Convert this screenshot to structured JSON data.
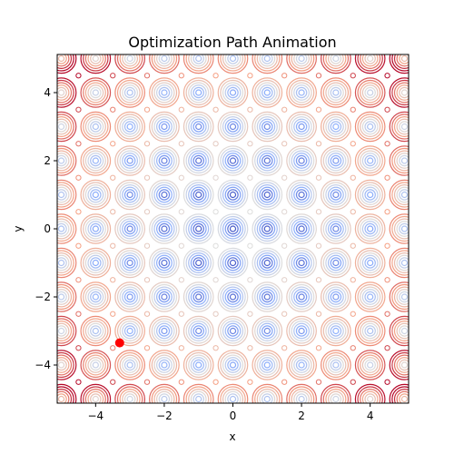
{
  "chart_data": {
    "type": "contour",
    "title": "Optimization Path Animation",
    "xlabel": "x",
    "ylabel": "y",
    "xlim": [
      -5.12,
      5.12
    ],
    "ylim": [
      -5.12,
      5.12
    ],
    "xticks": [
      -4,
      -2,
      0,
      2,
      4
    ],
    "yticks": [
      -4,
      -2,
      0,
      2,
      4
    ],
    "xtick_labels": [
      "−4",
      "−2",
      "0",
      "2",
      "4"
    ],
    "ytick_labels": [
      "−4",
      "−2",
      "0",
      "2",
      "4"
    ],
    "surface": "rastrigin",
    "colormap": "coolwarm",
    "grid": false,
    "current_point": {
      "x": -3.3,
      "y": -3.35,
      "color": "#ff0000"
    }
  }
}
